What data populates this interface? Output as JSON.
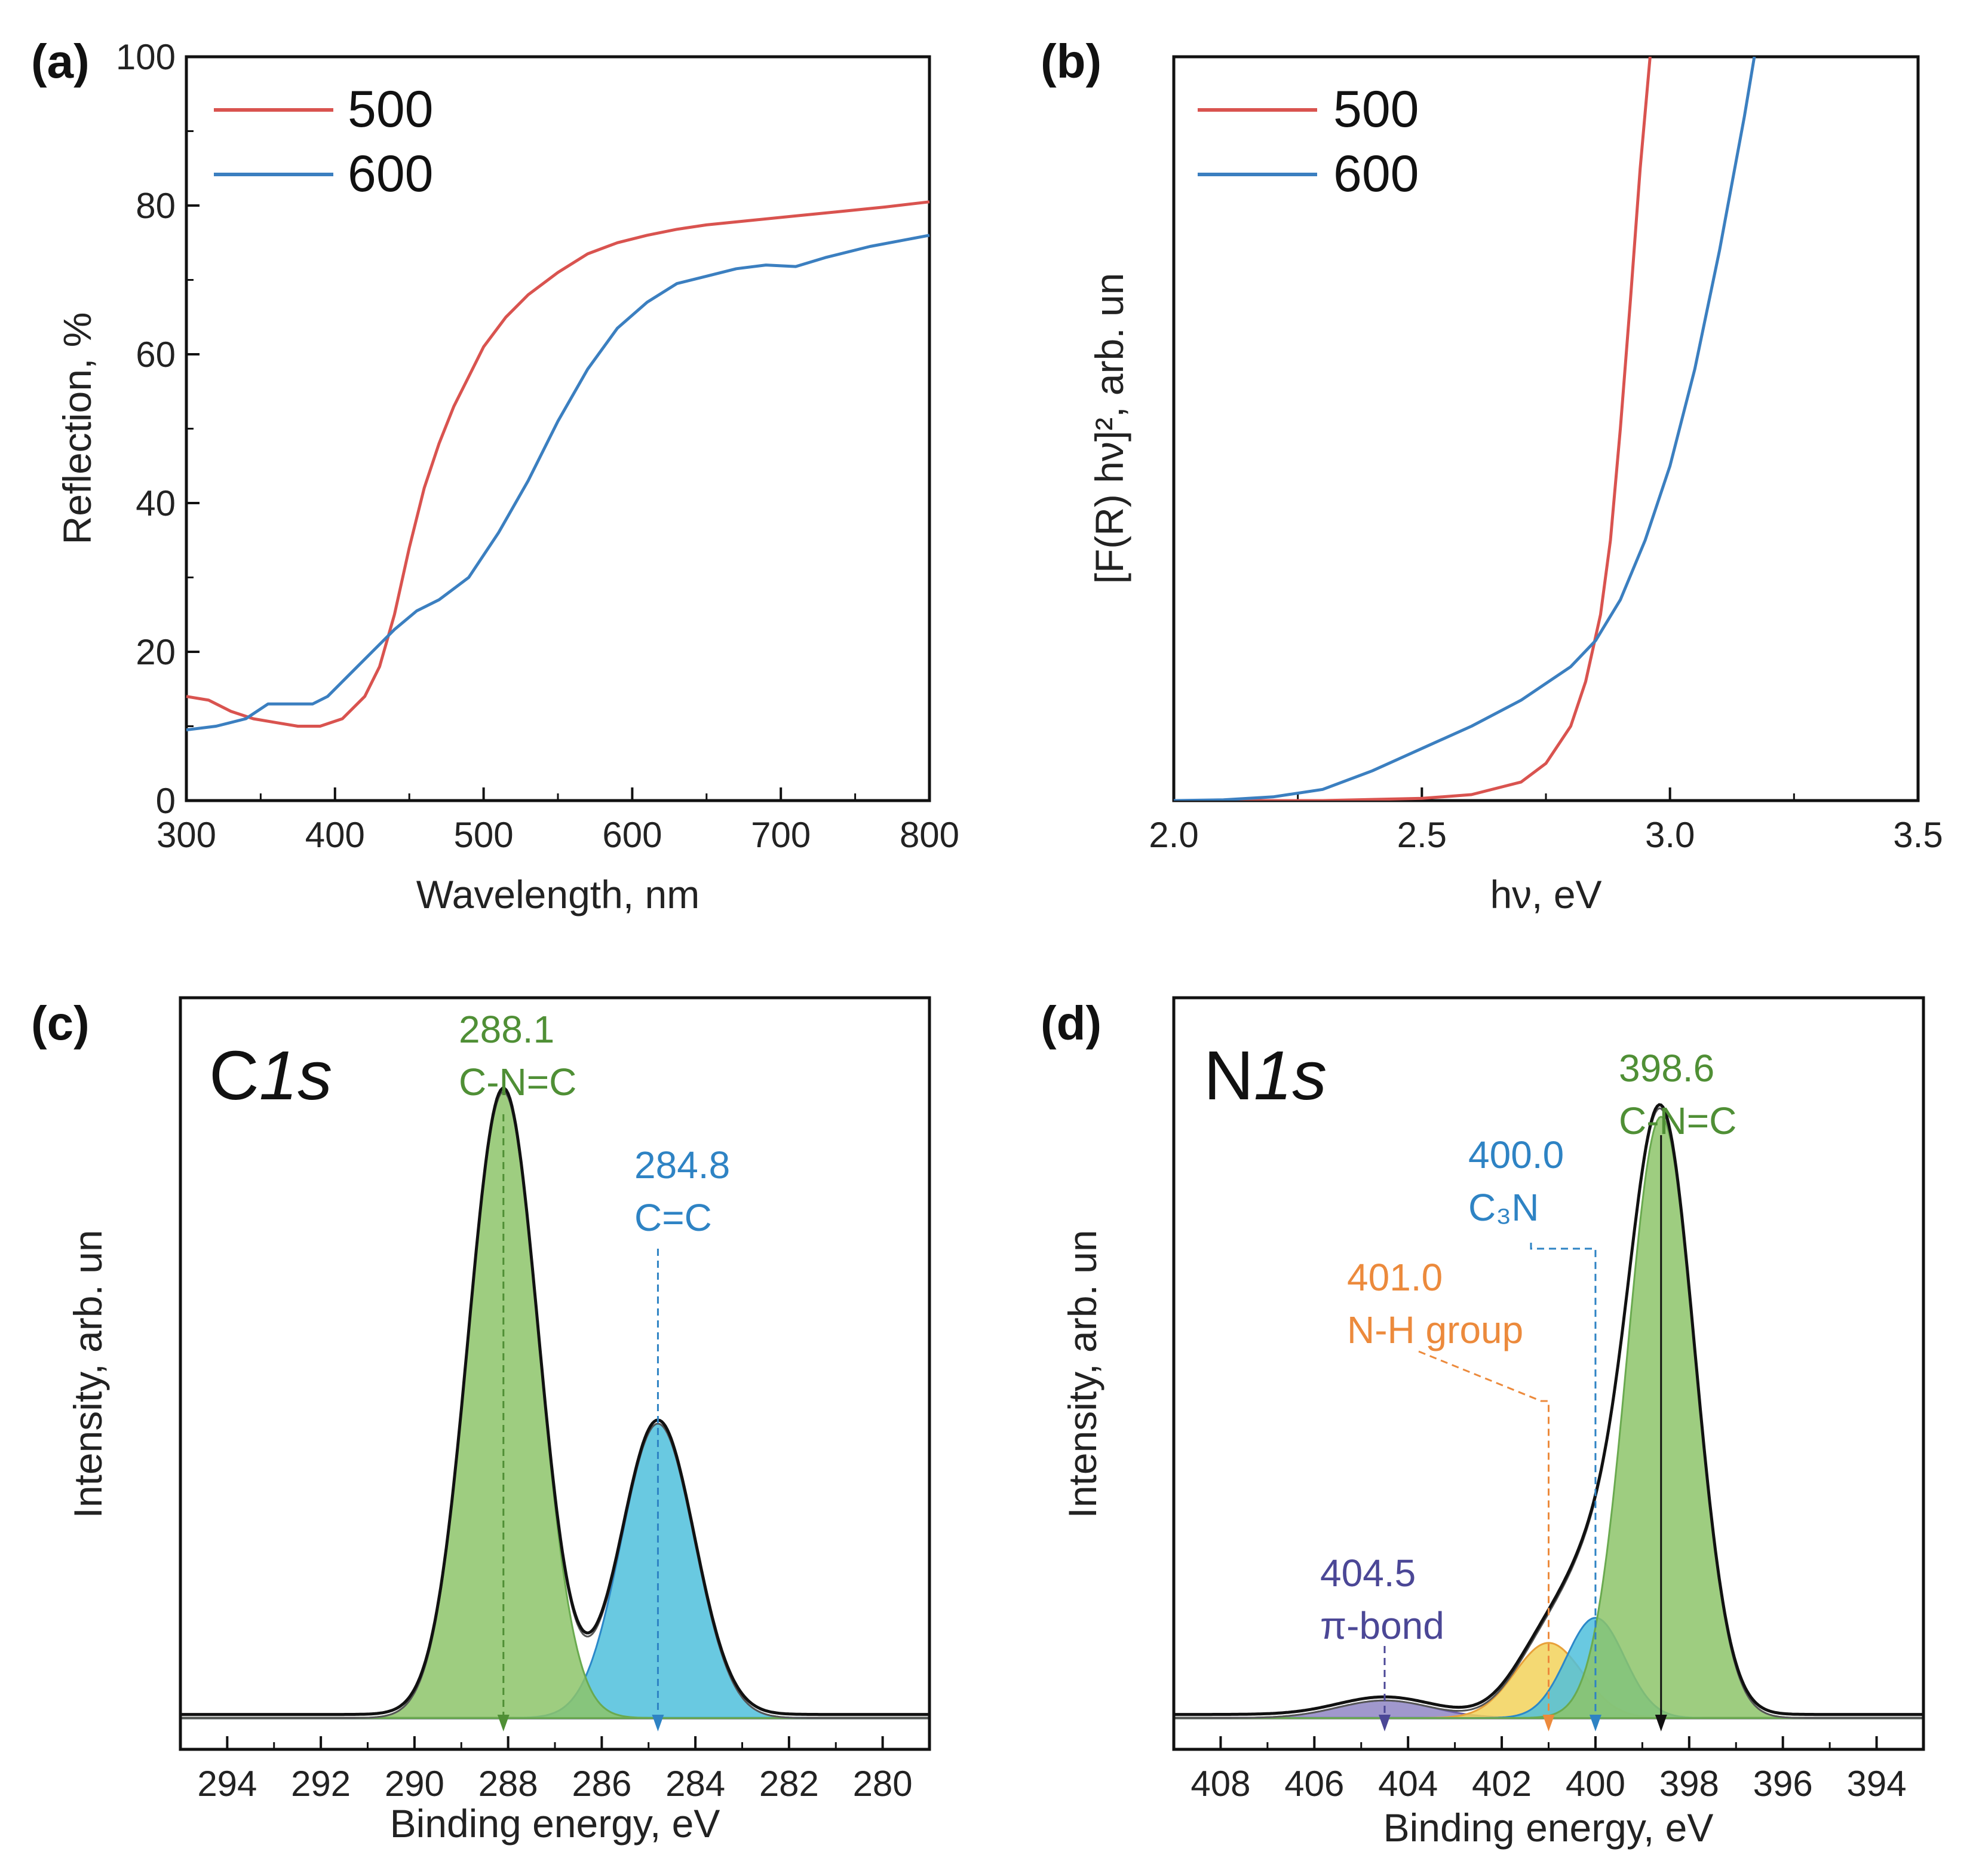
{
  "chart_data": [
    {
      "panel": "(a)",
      "type": "line",
      "xlabel": "Wavelength, nm",
      "ylabel": "Reflection, %",
      "xlim": [
        300,
        800
      ],
      "ylim": [
        0,
        100
      ],
      "xticks": [
        "300",
        "400",
        "500",
        "600",
        "700",
        "800"
      ],
      "yticks": [
        "0",
        "20",
        "40",
        "60",
        "80",
        "100"
      ],
      "legend": {
        "position": "top-left",
        "entries": [
          "500",
          "600"
        ]
      },
      "series": [
        {
          "name": "500",
          "color": "#d9534f",
          "x": [
            300,
            315,
            330,
            345,
            360,
            375,
            390,
            405,
            420,
            430,
            440,
            450,
            460,
            470,
            480,
            490,
            500,
            515,
            530,
            550,
            570,
            590,
            610,
            630,
            650,
            680,
            710,
            740,
            770,
            800
          ],
          "y": [
            14,
            13.5,
            12,
            11,
            10.5,
            10,
            10,
            11,
            14,
            18,
            25,
            34,
            42,
            48,
            53,
            57,
            61,
            65,
            68,
            71,
            73.5,
            75,
            76,
            76.8,
            77.4,
            78,
            78.6,
            79.2,
            79.8,
            80.5
          ]
        },
        {
          "name": "600",
          "color": "#3b7fc0",
          "x": [
            300,
            320,
            340,
            355,
            370,
            385,
            395,
            410,
            425,
            440,
            455,
            470,
            490,
            510,
            530,
            550,
            570,
            590,
            610,
            630,
            650,
            670,
            690,
            710,
            730,
            760,
            800
          ],
          "y": [
            9.5,
            10,
            11,
            13,
            13,
            13,
            14,
            17,
            20,
            23,
            25.5,
            27,
            30,
            36,
            43,
            51,
            58,
            63.5,
            67,
            69.5,
            70.5,
            71.5,
            72,
            71.8,
            73,
            74.5,
            76
          ]
        }
      ]
    },
    {
      "panel": "(b)",
      "type": "line",
      "xlabel": "hν, eV",
      "ylabel": "[F(R) hν]², arb. un",
      "xlim": [
        2.0,
        3.5
      ],
      "ylim": [
        0,
        100
      ],
      "xticks": [
        "2.0",
        "2.5",
        "3.0",
        "3.5"
      ],
      "legend": {
        "position": "top-left",
        "entries": [
          "500",
          "600"
        ]
      },
      "series": [
        {
          "name": "500",
          "color": "#d9534f",
          "x": [
            2.0,
            2.3,
            2.5,
            2.6,
            2.7,
            2.75,
            2.8,
            2.83,
            2.86,
            2.88,
            2.9,
            2.92,
            2.94,
            2.96
          ],
          "y": [
            0,
            0,
            0.3,
            0.8,
            2.5,
            5,
            10,
            16,
            25,
            35,
            50,
            67,
            85,
            100
          ]
        },
        {
          "name": "600",
          "color": "#3b7fc0",
          "x": [
            2.0,
            2.1,
            2.2,
            2.3,
            2.4,
            2.5,
            2.6,
            2.7,
            2.8,
            2.85,
            2.9,
            2.95,
            3.0,
            3.05,
            3.1,
            3.15,
            3.17
          ],
          "y": [
            0,
            0.1,
            0.5,
            1.5,
            4,
            7,
            10,
            13.5,
            18,
            21.5,
            27,
            35,
            45,
            58,
            74,
            92,
            100
          ]
        }
      ]
    },
    {
      "panel": "(c)",
      "type": "area",
      "title": "C1s",
      "xlabel": "Binding energy, eV",
      "ylabel": "Intensity, arb. un",
      "xlim": [
        295,
        279
      ],
      "ylim": [
        -0.05,
        1.15
      ],
      "xticks": [
        "294",
        "292",
        "290",
        "288",
        "286",
        "284",
        "282",
        "280"
      ],
      "baseline": 0,
      "peaks": [
        {
          "center": 288.1,
          "label_value": "288.1",
          "label_name": "C-N=C",
          "amplitude": 1.0,
          "sigma": 0.75,
          "color": "#6aaa4f",
          "fill": "#8dc46a",
          "text_color": "#4f8f35"
        },
        {
          "center": 284.8,
          "label_value": "284.8",
          "label_name": "C=C",
          "amplitude": 0.47,
          "sigma": 0.78,
          "color": "#2b88c9",
          "fill": "#4fbfdc",
          "text_color": "#2e83c4"
        }
      ]
    },
    {
      "panel": "(d)",
      "type": "area",
      "title": "N1s",
      "xlabel": "Binding energy, eV",
      "ylabel": "Intensity, arb. un",
      "xlim": [
        409,
        393
      ],
      "ylim": [
        -0.05,
        1.15
      ],
      "xticks": [
        "408",
        "406",
        "404",
        "402",
        "400",
        "398",
        "396",
        "394"
      ],
      "baseline": 0,
      "peaks": [
        {
          "center": 398.6,
          "label_value": "398.6",
          "label_name": "C-N=C",
          "amplitude": 0.96,
          "sigma": 0.72,
          "color": "#6aaa4f",
          "fill": "#8dc46a",
          "text_color": "#4f8f35"
        },
        {
          "center": 400.0,
          "label_value": "400.0",
          "label_name": "C₃N",
          "amplitude": 0.16,
          "sigma": 0.62,
          "color": "#2b88c9",
          "fill": "#4fbfdc",
          "text_color": "#2e83c4"
        },
        {
          "center": 401.0,
          "label_value": "401.0",
          "label_name": "N-H group",
          "amplitude": 0.12,
          "sigma": 0.72,
          "color": "#e8a13a",
          "fill": "#f2d25a",
          "text_color": "#ec8a3c"
        },
        {
          "center": 404.5,
          "label_value": "404.5",
          "label_name": "π-bond",
          "amplitude": 0.028,
          "sigma": 1.0,
          "color": "#6a5fa8",
          "fill": "#8f86c4",
          "text_color": "#4b4796"
        }
      ]
    }
  ]
}
